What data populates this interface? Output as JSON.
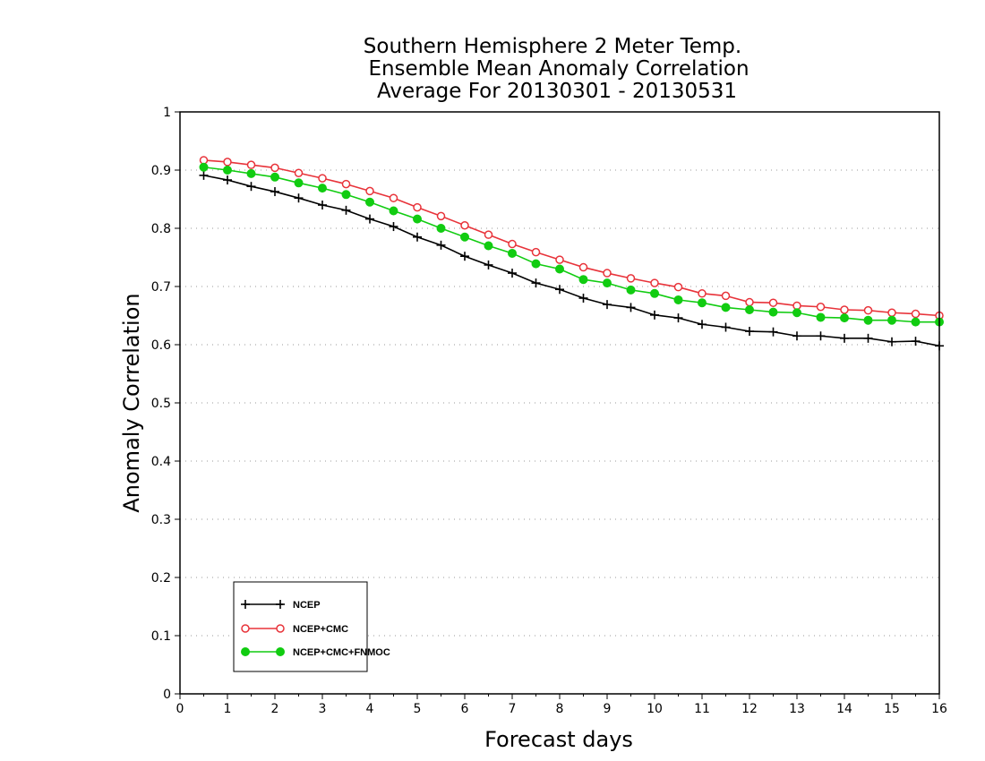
{
  "chart_data": {
    "type": "line",
    "title": [
      "Southern Hemisphere 2 Meter Temp.",
      "Ensemble Mean Anomaly Correlation",
      "Average For 20130301 - 20130531"
    ],
    "xlabel": "Forecast days",
    "ylabel": "Anomaly Correlation",
    "xlim": [
      0,
      16
    ],
    "ylim": [
      0,
      1
    ],
    "x_ticks": [
      "0",
      "1",
      "2",
      "3",
      "4",
      "5",
      "6",
      "7",
      "8",
      "9",
      "10",
      "11",
      "12",
      "13",
      "14",
      "15",
      "16"
    ],
    "y_ticks": [
      "0",
      "0.1",
      "0.2",
      "0.3",
      "0.4",
      "0.5",
      "0.6",
      "0.7",
      "0.8",
      "0.9",
      "1"
    ],
    "grid": "horizontal-dotted",
    "legend_position": "bottom-left",
    "x": [
      0.5,
      1,
      1.5,
      2,
      2.5,
      3,
      3.5,
      4,
      4.5,
      5,
      5.5,
      6,
      6.5,
      7,
      7.5,
      8,
      8.5,
      9,
      9.5,
      10,
      10.5,
      11,
      11.5,
      12,
      12.5,
      13,
      13.5,
      14,
      14.5,
      15,
      15.5,
      16
    ],
    "series": [
      {
        "name": "NCEP",
        "color": "#000000",
        "marker": "plus",
        "values": [
          0.891,
          0.883,
          0.872,
          0.863,
          0.852,
          0.84,
          0.831,
          0.816,
          0.803,
          0.785,
          0.771,
          0.752,
          0.737,
          0.723,
          0.706,
          0.695,
          0.68,
          0.669,
          0.664,
          0.651,
          0.646,
          0.635,
          0.63,
          0.623,
          0.622,
          0.615,
          0.615,
          0.611,
          0.611,
          0.605,
          0.606,
          0.598
        ]
      },
      {
        "name": "NCEP+CMC",
        "color": "#e8333a",
        "marker": "open-circle",
        "values": [
          0.917,
          0.914,
          0.909,
          0.904,
          0.895,
          0.886,
          0.876,
          0.864,
          0.852,
          0.836,
          0.821,
          0.805,
          0.789,
          0.773,
          0.759,
          0.746,
          0.733,
          0.723,
          0.714,
          0.706,
          0.699,
          0.688,
          0.684,
          0.673,
          0.672,
          0.667,
          0.665,
          0.66,
          0.659,
          0.655,
          0.653,
          0.65
        ]
      },
      {
        "name": "NCEP+CMC+FNMOC",
        "color": "#11cc11",
        "marker": "filled-circle",
        "values": [
          0.905,
          0.9,
          0.894,
          0.888,
          0.878,
          0.869,
          0.858,
          0.845,
          0.83,
          0.816,
          0.8,
          0.785,
          0.77,
          0.757,
          0.739,
          0.73,
          0.712,
          0.706,
          0.694,
          0.688,
          0.677,
          0.672,
          0.664,
          0.66,
          0.656,
          0.655,
          0.647,
          0.646,
          0.642,
          0.642,
          0.639,
          0.639
        ]
      }
    ]
  }
}
